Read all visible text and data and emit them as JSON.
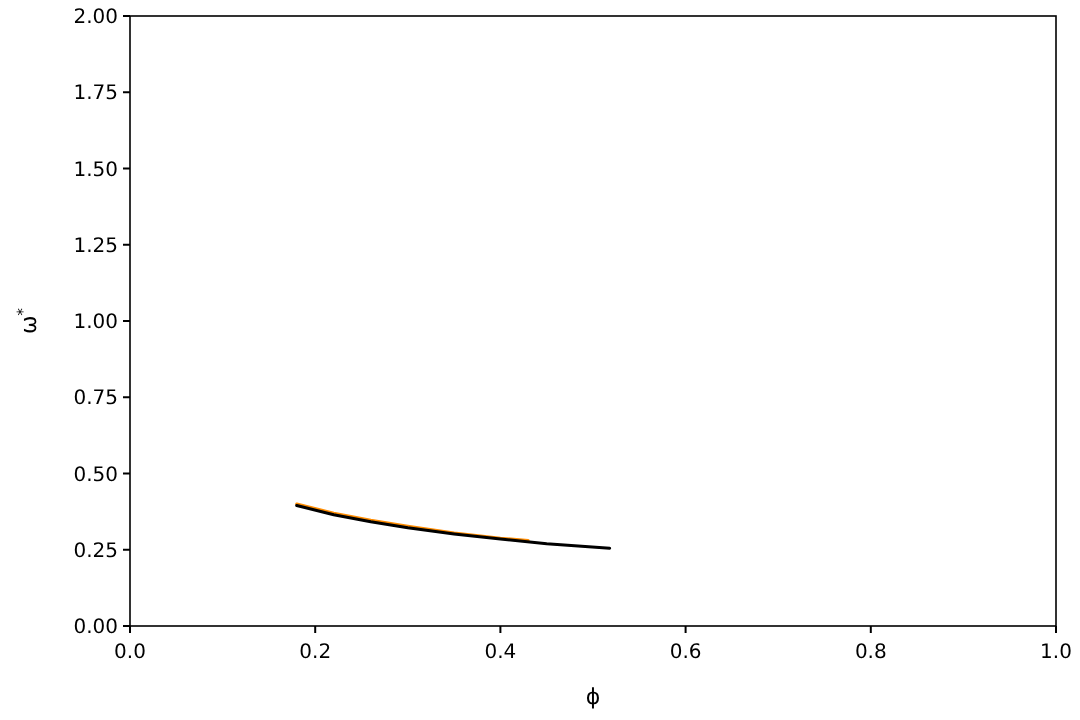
{
  "chart_data": {
    "type": "line",
    "xlabel": "ϕ",
    "ylabel": "ω$^{*}$",
    "xlim": [
      0,
      1
    ],
    "ylim": [
      0,
      2
    ],
    "xticks": [
      {
        "value": 0,
        "label": "0.0"
      },
      {
        "value": 0.2,
        "label": "0.2"
      },
      {
        "value": 0.4,
        "label": "0.4"
      },
      {
        "value": 0.6,
        "label": "0.6"
      },
      {
        "value": 0.8,
        "label": "0.8"
      },
      {
        "value": 1,
        "label": "1.0"
      }
    ],
    "yticks": [
      {
        "value": 0,
        "label": "0.00"
      },
      {
        "value": 0.25,
        "label": "0.25"
      },
      {
        "value": 0.5,
        "label": "0.50"
      },
      {
        "value": 0.75,
        "label": "0.75"
      },
      {
        "value": 1,
        "label": "1.00"
      },
      {
        "value": 1.25,
        "label": "1.25"
      },
      {
        "value": 1.5,
        "label": "1.50"
      },
      {
        "value": 1.75,
        "label": "1.75"
      },
      {
        "value": 2,
        "label": "2.00"
      }
    ],
    "grid": false,
    "series": [
      {
        "color": "#ff8c00",
        "x": [
          0.18,
          0.22,
          0.26,
          0.3,
          0.35,
          0.4,
          0.43
        ],
        "values": [
          0.4,
          0.37,
          0.347,
          0.327,
          0.305,
          0.288,
          0.28
        ]
      },
      {
        "color": "#000000",
        "x": [
          0.18,
          0.22,
          0.26,
          0.3,
          0.35,
          0.4,
          0.45,
          0.518
        ],
        "values": [
          0.395,
          0.365,
          0.342,
          0.322,
          0.302,
          0.285,
          0.27,
          0.255
        ]
      }
    ]
  }
}
